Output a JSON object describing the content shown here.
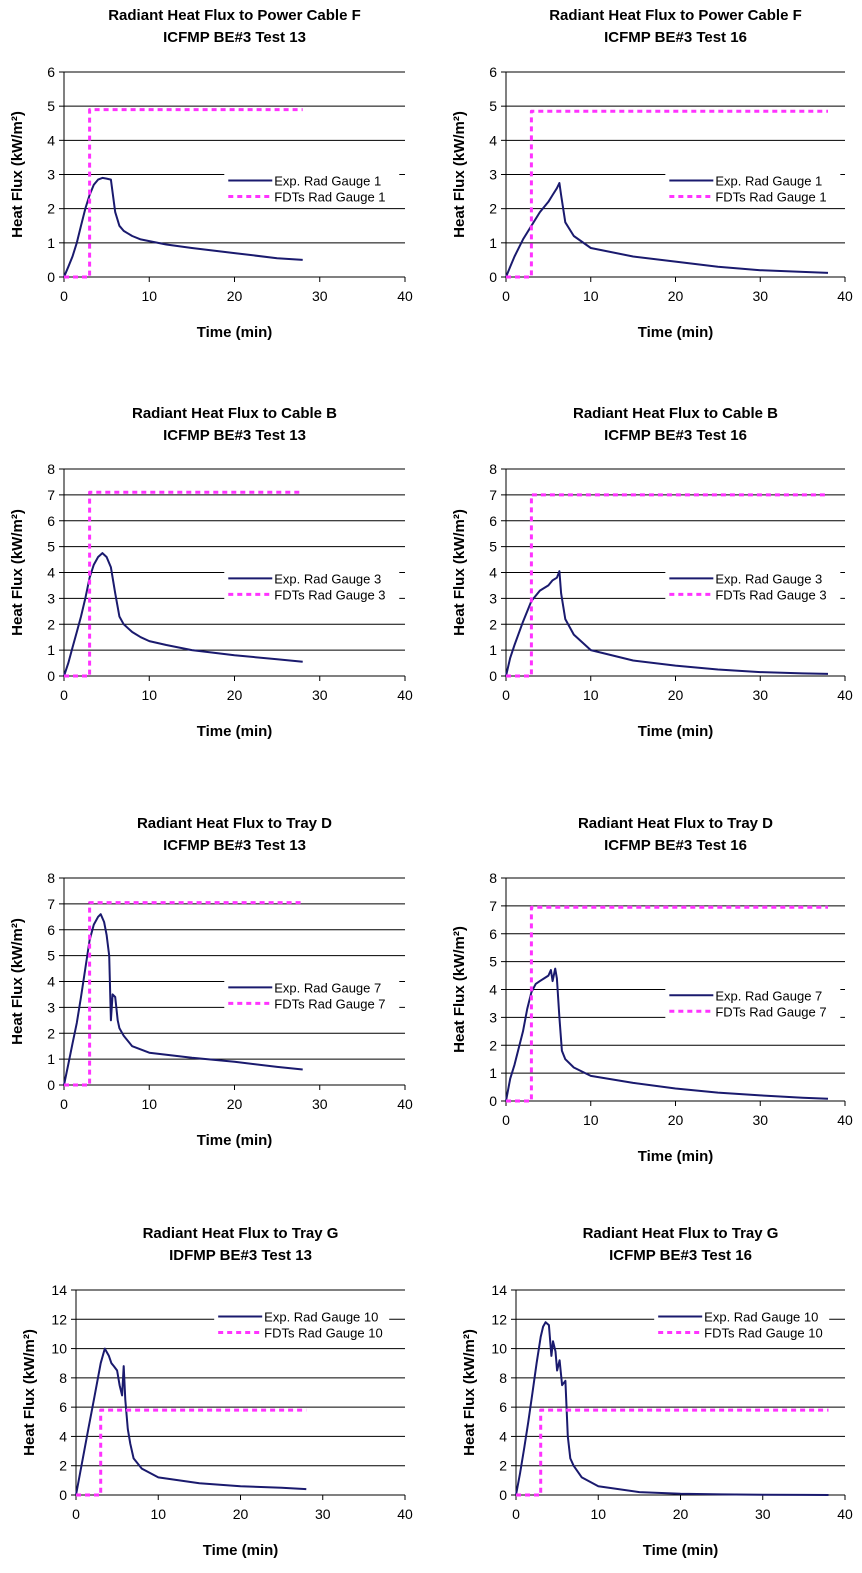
{
  "colors": {
    "experiment": "#1a1a6e",
    "fdts": "#ff33ff",
    "gridline": "#000000"
  },
  "chart_data": [
    {
      "type": "line",
      "title": [
        "Radiant Heat Flux to Power Cable F",
        "ICFMP BE#3 Test 13"
      ],
      "xlabel": "Time (min)",
      "ylabel": "Heat Flux (kW/m²)",
      "xlim": [
        0,
        40
      ],
      "ylim": [
        0,
        6
      ],
      "xticks": [
        0,
        10,
        20,
        30,
        40
      ],
      "yticks": [
        0,
        1,
        2,
        3,
        4,
        5,
        6
      ],
      "grid": true,
      "legend_position": "right-middle",
      "series": [
        {
          "name": "Exp. Rad Gauge 1",
          "style": "solid",
          "x": [
            0,
            0.5,
            1,
            1.5,
            2,
            2.5,
            3,
            3.5,
            4,
            4.5,
            5,
            5.5,
            6,
            6.5,
            7,
            8,
            9,
            10,
            12,
            15,
            20,
            25,
            28
          ],
          "y": [
            0,
            0.3,
            0.6,
            1.0,
            1.5,
            2.0,
            2.4,
            2.7,
            2.85,
            2.9,
            2.88,
            2.85,
            1.9,
            1.5,
            1.35,
            1.2,
            1.1,
            1.05,
            0.95,
            0.85,
            0.7,
            0.55,
            0.5
          ]
        },
        {
          "name": "FDTs Rad Gauge 1",
          "style": "dashed",
          "x": [
            0,
            3,
            3,
            28
          ],
          "y": [
            0,
            0,
            4.9,
            4.9
          ]
        }
      ]
    },
    {
      "type": "line",
      "title": [
        "Radiant Heat Flux to Power Cable F",
        "ICFMP BE#3 Test 16"
      ],
      "xlabel": "Time (min)",
      "ylabel": "Heat Flux (kW/m²)",
      "xlim": [
        0,
        40
      ],
      "ylim": [
        0,
        6
      ],
      "xticks": [
        0,
        10,
        20,
        30,
        40
      ],
      "yticks": [
        0,
        1,
        2,
        3,
        4,
        5,
        6
      ],
      "grid": true,
      "legend_position": "right-middle",
      "series": [
        {
          "name": "Exp. Rad Gauge 1",
          "style": "solid",
          "x": [
            0,
            0.5,
            1,
            2,
            3,
            4,
            5,
            5.5,
            6,
            6.3,
            6.5,
            7,
            8,
            10,
            15,
            20,
            25,
            30,
            35,
            38
          ],
          "y": [
            0,
            0.3,
            0.6,
            1.1,
            1.5,
            1.9,
            2.2,
            2.4,
            2.6,
            2.75,
            2.4,
            1.6,
            1.2,
            0.85,
            0.6,
            0.45,
            0.3,
            0.2,
            0.15,
            0.12
          ]
        },
        {
          "name": "FDTs Rad Gauge 1",
          "style": "dashed",
          "x": [
            0,
            3,
            3,
            38
          ],
          "y": [
            0,
            0,
            4.85,
            4.85
          ]
        }
      ]
    },
    {
      "type": "line",
      "title": [
        "Radiant Heat Flux to Cable B",
        "ICFMP BE#3 Test 13"
      ],
      "xlabel": "Time (min)",
      "ylabel": "Heat Flux (kW/m²)",
      "xlim": [
        0,
        40
      ],
      "ylim": [
        0,
        8
      ],
      "xticks": [
        0,
        10,
        20,
        30,
        40
      ],
      "yticks": [
        0,
        1,
        2,
        3,
        4,
        5,
        6,
        7,
        8
      ],
      "grid": true,
      "legend_position": "right-middle",
      "series": [
        {
          "name": "Exp. Rad Gauge 3",
          "style": "solid",
          "x": [
            0,
            0.5,
            1,
            1.5,
            2,
            2.5,
            3,
            3.5,
            4,
            4.5,
            5,
            5.5,
            6,
            6.5,
            7,
            8,
            9,
            10,
            12,
            15,
            20,
            25,
            28
          ],
          "y": [
            0,
            0.5,
            1.1,
            1.7,
            2.3,
            3.0,
            3.8,
            4.3,
            4.6,
            4.75,
            4.6,
            4.2,
            3.2,
            2.3,
            2.0,
            1.7,
            1.5,
            1.35,
            1.2,
            1.0,
            0.8,
            0.65,
            0.55
          ]
        },
        {
          "name": "FDTs Rad Gauge 3",
          "style": "dashed",
          "x": [
            0,
            3,
            3,
            28
          ],
          "y": [
            0,
            0,
            7.1,
            7.1
          ]
        }
      ]
    },
    {
      "type": "line",
      "title": [
        "Radiant Heat Flux to Cable B",
        "ICFMP BE#3 Test 16"
      ],
      "xlabel": "Time (min)",
      "ylabel": "Heat Flux (kW/m²)",
      "xlim": [
        0,
        40
      ],
      "ylim": [
        0,
        8
      ],
      "xticks": [
        0,
        10,
        20,
        30,
        40
      ],
      "yticks": [
        0,
        1,
        2,
        3,
        4,
        5,
        6,
        7,
        8
      ],
      "grid": true,
      "legend_position": "right-middle",
      "series": [
        {
          "name": "Exp. Rad Gauge 3",
          "style": "solid",
          "x": [
            0,
            0.5,
            1,
            2,
            3,
            4,
            5,
            5.5,
            6,
            6.3,
            6.5,
            7,
            8,
            10,
            15,
            20,
            25,
            30,
            35,
            38
          ],
          "y": [
            0,
            0.7,
            1.2,
            2.1,
            2.9,
            3.3,
            3.5,
            3.7,
            3.8,
            4.05,
            3.2,
            2.2,
            1.6,
            1.0,
            0.6,
            0.4,
            0.25,
            0.15,
            0.1,
            0.08
          ]
        },
        {
          "name": "FDTs Rad Gauge 3",
          "style": "dashed",
          "x": [
            0,
            3,
            3,
            38
          ],
          "y": [
            0,
            0,
            7.0,
            7.0
          ]
        }
      ]
    },
    {
      "type": "line",
      "title": [
        "Radiant Heat Flux to Tray D",
        "ICFMP BE#3 Test 13"
      ],
      "xlabel": "Time (min)",
      "ylabel": "Heat Flux (kW/m²)",
      "xlim": [
        0,
        40
      ],
      "ylim": [
        0,
        8
      ],
      "xticks": [
        0,
        10,
        20,
        30,
        40
      ],
      "yticks": [
        0,
        1,
        2,
        3,
        4,
        5,
        6,
        7,
        8
      ],
      "grid": true,
      "legend_position": "right-middle",
      "series": [
        {
          "name": "Exp. Rad Gauge 7",
          "style": "solid",
          "x": [
            0,
            0.5,
            1,
            1.5,
            2,
            2.5,
            3,
            3.5,
            4,
            4.3,
            4.7,
            5,
            5.3,
            5.5,
            5.7,
            6,
            6.3,
            6.5,
            7,
            8,
            10,
            15,
            20,
            25,
            28
          ],
          "y": [
            0,
            0.8,
            1.6,
            2.4,
            3.4,
            4.5,
            5.6,
            6.2,
            6.5,
            6.6,
            6.3,
            5.8,
            5.0,
            2.5,
            3.5,
            3.4,
            2.5,
            2.2,
            1.9,
            1.5,
            1.25,
            1.05,
            0.9,
            0.7,
            0.6
          ]
        },
        {
          "name": "FDTs Rad Gauge 7",
          "style": "dashed",
          "x": [
            0,
            3,
            3,
            28
          ],
          "y": [
            0,
            0,
            7.05,
            7.05
          ]
        }
      ]
    },
    {
      "type": "line",
      "title": [
        "Radiant Heat Flux to Tray D",
        "ICFMP BE#3 Test 16"
      ],
      "xlabel": "Time (min)",
      "ylabel": "Heat Flux (kW/m²)",
      "xlim": [
        0,
        40
      ],
      "ylim": [
        0,
        8
      ],
      "xticks": [
        0,
        10,
        20,
        30,
        40
      ],
      "yticks": [
        0,
        1,
        2,
        3,
        4,
        5,
        6,
        7,
        8
      ],
      "grid": true,
      "legend_position": "right-middle",
      "series": [
        {
          "name": "Exp. Rad Gauge 7",
          "style": "solid",
          "x": [
            0,
            0.5,
            1,
            2,
            2.5,
            3,
            3.5,
            4,
            4.5,
            5,
            5.3,
            5.5,
            5.8,
            6,
            6.3,
            6.6,
            7,
            8,
            10,
            15,
            20,
            25,
            30,
            35,
            38
          ],
          "y": [
            0,
            0.8,
            1.3,
            2.5,
            3.3,
            3.9,
            4.2,
            4.3,
            4.4,
            4.5,
            4.7,
            4.3,
            4.75,
            4.4,
            3.0,
            1.8,
            1.5,
            1.2,
            0.9,
            0.65,
            0.45,
            0.3,
            0.2,
            0.12,
            0.08
          ]
        },
        {
          "name": "FDTs Rad Gauge 7",
          "style": "dashed",
          "x": [
            0,
            3,
            3,
            38
          ],
          "y": [
            0,
            0,
            6.95,
            6.95
          ]
        }
      ]
    },
    {
      "type": "line",
      "title": [
        "Radiant Heat Flux to Tray G",
        "IDFMP BE#3 Test 13"
      ],
      "xlabel": "Time (min)",
      "ylabel": "Heat Flux (kW/m²)",
      "xlim": [
        0,
        40
      ],
      "ylim": [
        0,
        14
      ],
      "xticks": [
        0,
        10,
        20,
        30,
        40
      ],
      "yticks": [
        0,
        2,
        4,
        6,
        8,
        10,
        12,
        14
      ],
      "grid": true,
      "legend_position": "top-right",
      "series": [
        {
          "name": "Exp. Rad Gauge 10",
          "style": "solid",
          "x": [
            0,
            0.5,
            1,
            1.5,
            2,
            2.5,
            3,
            3.5,
            4,
            4.3,
            4.6,
            5,
            5.3,
            5.6,
            5.8,
            6,
            6.3,
            6.6,
            7,
            8,
            10,
            15,
            20,
            25,
            28
          ],
          "y": [
            0,
            1.5,
            3.0,
            4.5,
            6.0,
            7.5,
            9.0,
            10.0,
            9.5,
            9.0,
            8.8,
            8.5,
            7.5,
            6.8,
            8.8,
            6.5,
            4.5,
            3.5,
            2.5,
            1.8,
            1.2,
            0.8,
            0.6,
            0.5,
            0.4
          ]
        },
        {
          "name": "FDTs Rad Gauge 10",
          "style": "dashed",
          "x": [
            0,
            3,
            3,
            28
          ],
          "y": [
            0,
            0,
            5.8,
            5.8
          ]
        }
      ]
    },
    {
      "type": "line",
      "title": [
        "Radiant Heat Flux to Tray G",
        "ICFMP BE#3 Test 16"
      ],
      "xlabel": "Time (min)",
      "ylabel": "Heat Flux (kW/m²)",
      "xlim": [
        0,
        40
      ],
      "ylim": [
        0,
        14
      ],
      "xticks": [
        0,
        10,
        20,
        30,
        40
      ],
      "yticks": [
        0,
        2,
        4,
        6,
        8,
        10,
        12,
        14
      ],
      "grid": true,
      "legend_position": "top-right",
      "series": [
        {
          "name": "Exp. Rad Gauge 10",
          "style": "solid",
          "x": [
            0,
            0.5,
            1,
            1.5,
            2,
            2.5,
            3,
            3.3,
            3.6,
            4,
            4.3,
            4.5,
            4.8,
            5,
            5.3,
            5.6,
            6,
            6.3,
            6.6,
            7,
            8,
            10,
            15,
            20,
            25,
            30,
            35,
            38
          ],
          "y": [
            0,
            1.5,
            3.2,
            5.0,
            7.0,
            9.0,
            10.8,
            11.5,
            11.8,
            11.6,
            9.5,
            10.5,
            9.8,
            8.5,
            9.2,
            7.5,
            7.8,
            4.0,
            2.5,
            2.0,
            1.2,
            0.6,
            0.2,
            0.08,
            0.04,
            0.02,
            0.01,
            0.0
          ]
        },
        {
          "name": "FDTs Rad Gauge 10",
          "style": "dashed",
          "x": [
            0,
            3,
            3,
            38
          ],
          "y": [
            0,
            0,
            5.8,
            5.8
          ]
        }
      ]
    }
  ]
}
